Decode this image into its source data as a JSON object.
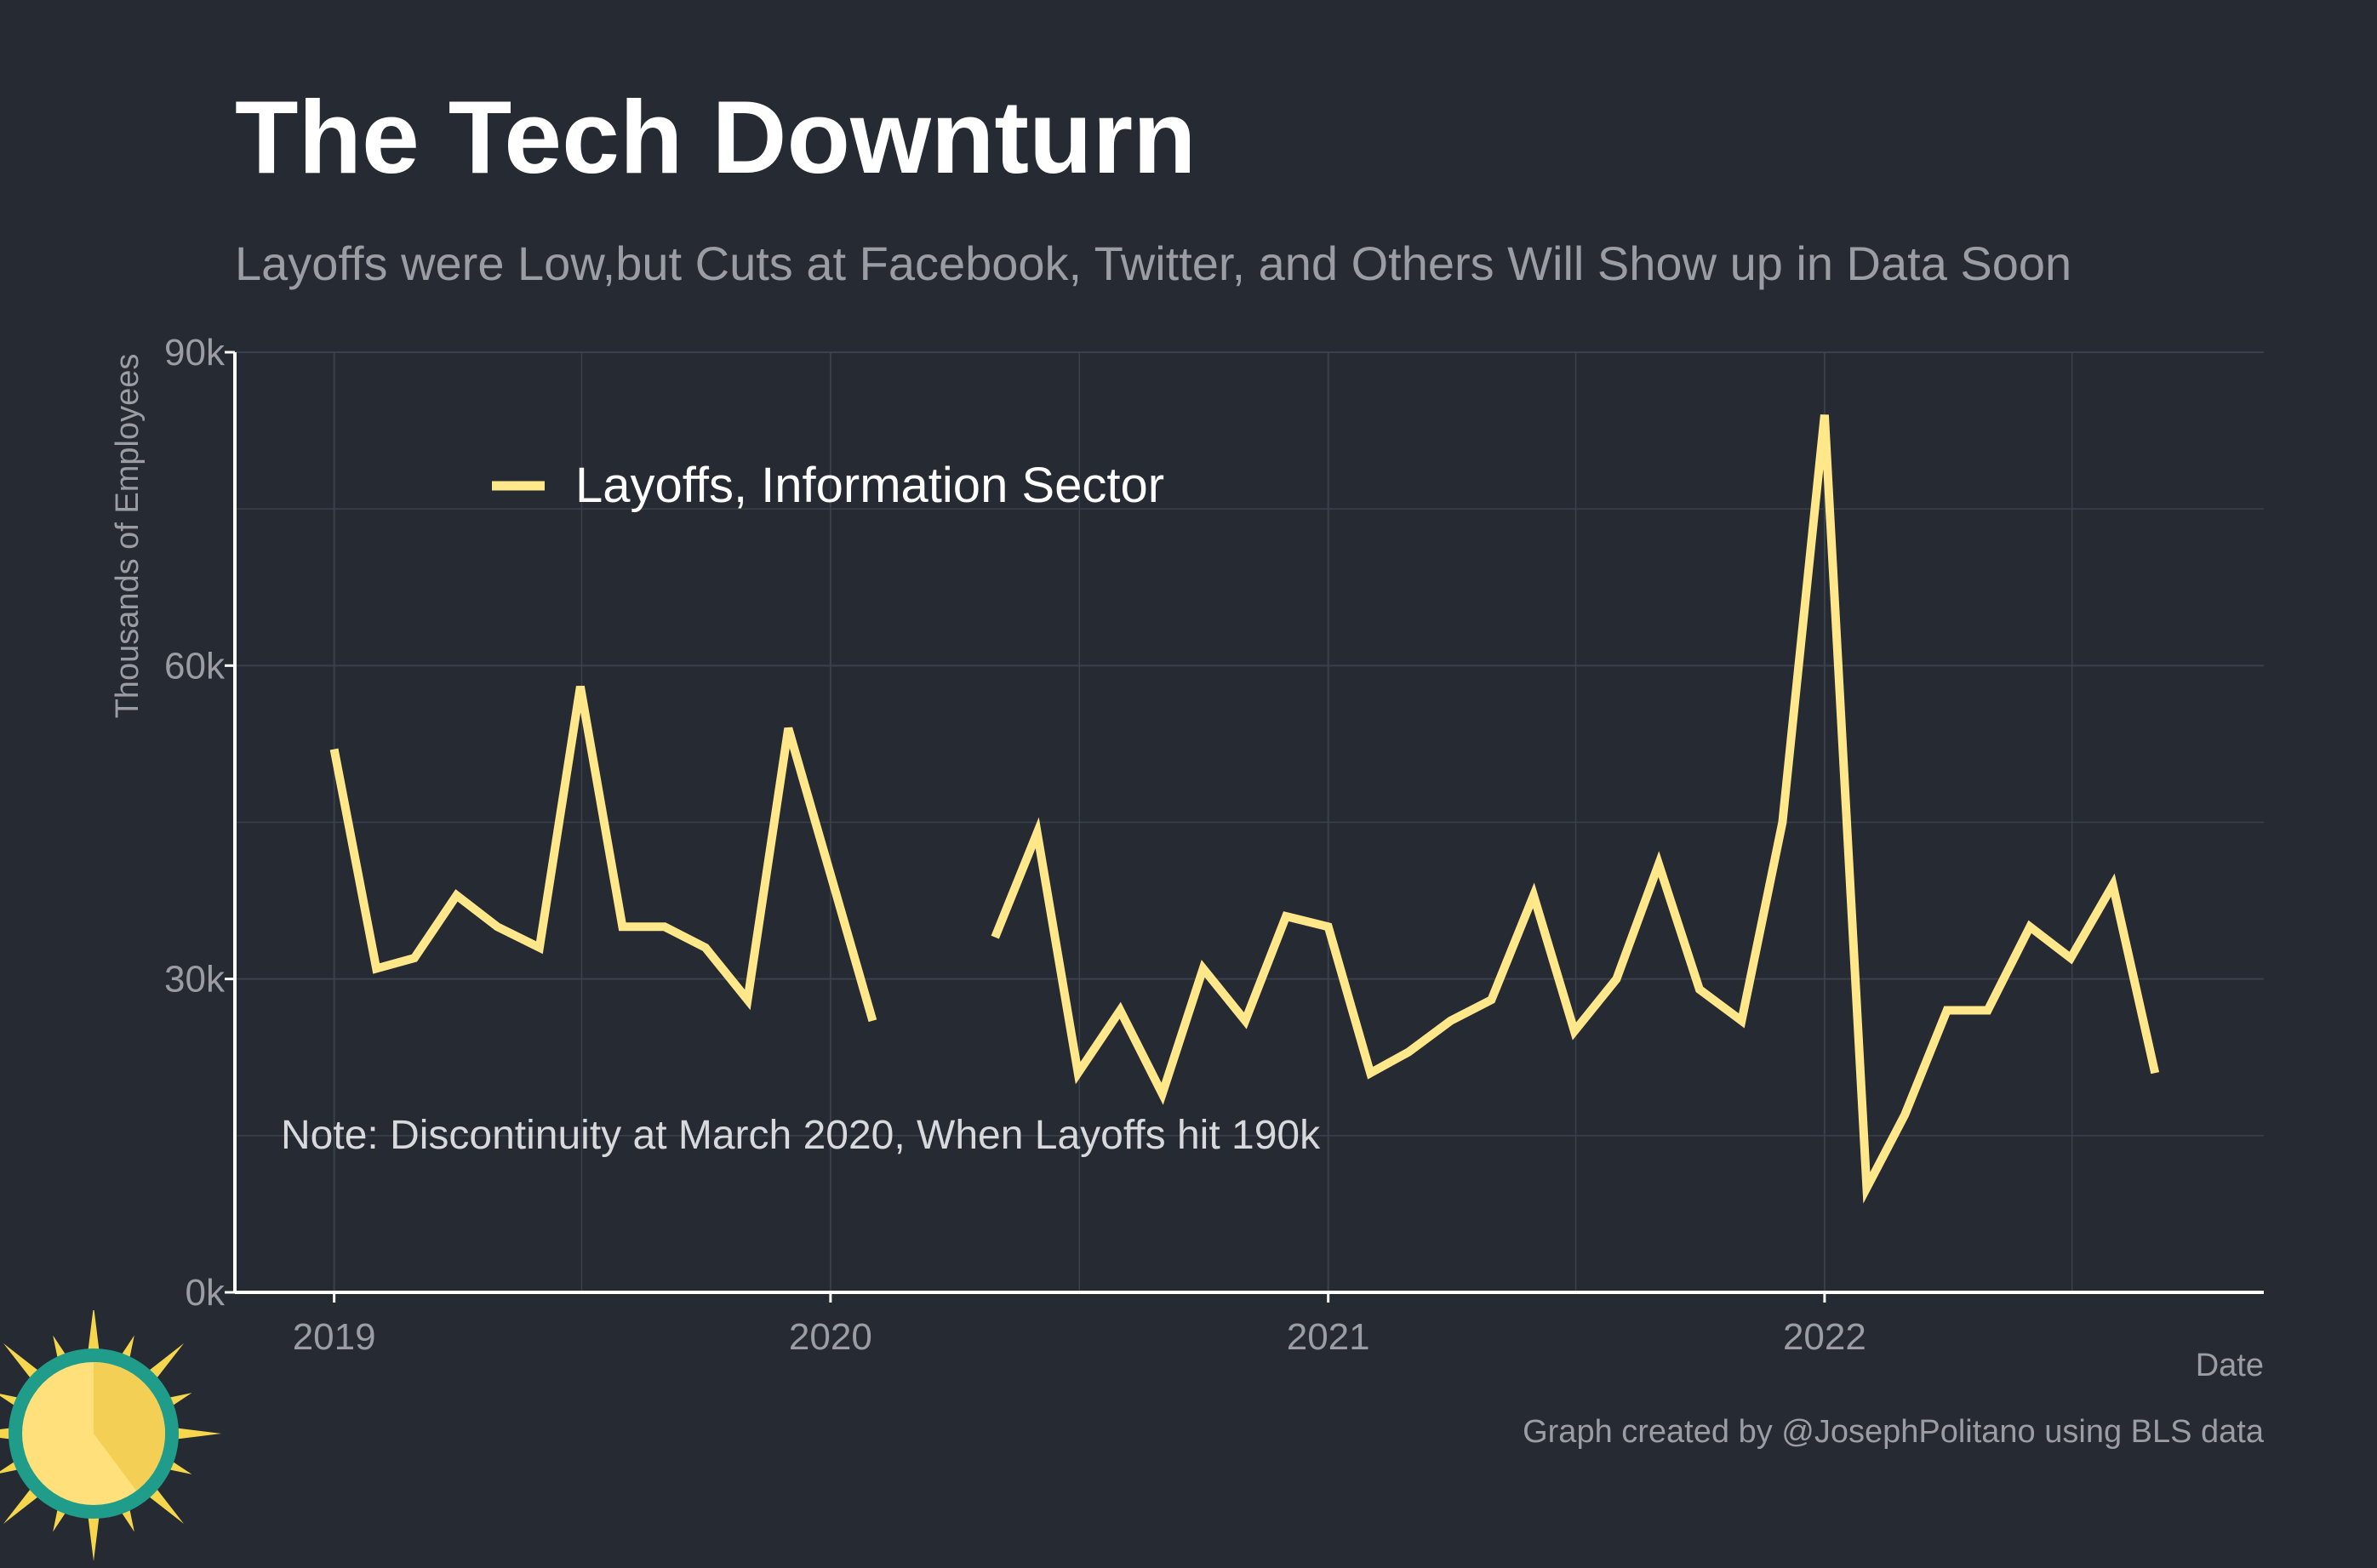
{
  "title": "The Tech Downturn",
  "subtitle": "Layoffs were Low,but Cuts at Facebook, Twitter, and Others Will Show up in Data Soon",
  "caption": "Graph created by @JosephPolitano using BLS data",
  "note": "Note: Discontinuity at March 2020, When Layoffs hit 190k",
  "colors": {
    "background": "#252a33",
    "line": "#ffe78a",
    "grid": "#3b414c",
    "text_muted": "#9a9da3",
    "axis": "#ffffff"
  },
  "chart_data": {
    "type": "line",
    "title": "The Tech Downturn",
    "subtitle": "Layoffs were Low,but Cuts at Facebook, Twitter, and Others Will Show up in Data Soon",
    "xlabel": "Date",
    "ylabel": "Thousands of Employees",
    "ylim": [
      0,
      90000
    ],
    "xlim": [
      "2018-10-20",
      "2022-11-20"
    ],
    "y_ticks": [
      0,
      30000,
      60000,
      90000
    ],
    "y_tick_labels": [
      "0k",
      "30k",
      "60k",
      "90k"
    ],
    "x_ticks": [
      "2019-01-01",
      "2020-01-01",
      "2021-01-01",
      "2022-01-01"
    ],
    "x_tick_labels": [
      "2019",
      "2020",
      "2021",
      "2022"
    ],
    "grid": true,
    "legend": "top-left",
    "series": [
      {
        "name": "Layoffs, Information Sector",
        "x": [
          "2019-01-01",
          "2019-02-01",
          "2019-03-01",
          "2019-04-01",
          "2019-05-01",
          "2019-06-01",
          "2019-07-01",
          "2019-08-01",
          "2019-09-01",
          "2019-10-01",
          "2019-11-01",
          "2019-12-01",
          "2020-01-01",
          "2020-02-01",
          "2020-03-01",
          "2020-04-01",
          "2020-05-01",
          "2020-06-01",
          "2020-07-01",
          "2020-08-01",
          "2020-09-01",
          "2020-10-01",
          "2020-11-01",
          "2020-12-01",
          "2021-01-01",
          "2021-02-01",
          "2021-03-01",
          "2021-04-01",
          "2021-05-01",
          "2021-06-01",
          "2021-07-01",
          "2021-08-01",
          "2021-09-01",
          "2021-10-01",
          "2021-11-01",
          "2021-12-01",
          "2022-01-01",
          "2022-02-01",
          "2022-03-01",
          "2022-04-01",
          "2022-05-01",
          "2022-06-01",
          "2022-07-01",
          "2022-08-01",
          "2022-09-01"
        ],
        "y": [
          52000,
          31000,
          32000,
          38000,
          35000,
          33000,
          58000,
          35000,
          35000,
          33000,
          28000,
          54000,
          40000,
          26000,
          null,
          null,
          34000,
          44000,
          21000,
          27000,
          19000,
          31000,
          26000,
          36000,
          35000,
          21000,
          23000,
          26000,
          28000,
          38000,
          25000,
          30000,
          41000,
          29000,
          26000,
          45000,
          84000,
          10000,
          17000,
          27000,
          27000,
          35000,
          32000,
          39000,
          21000
        ]
      }
    ]
  }
}
